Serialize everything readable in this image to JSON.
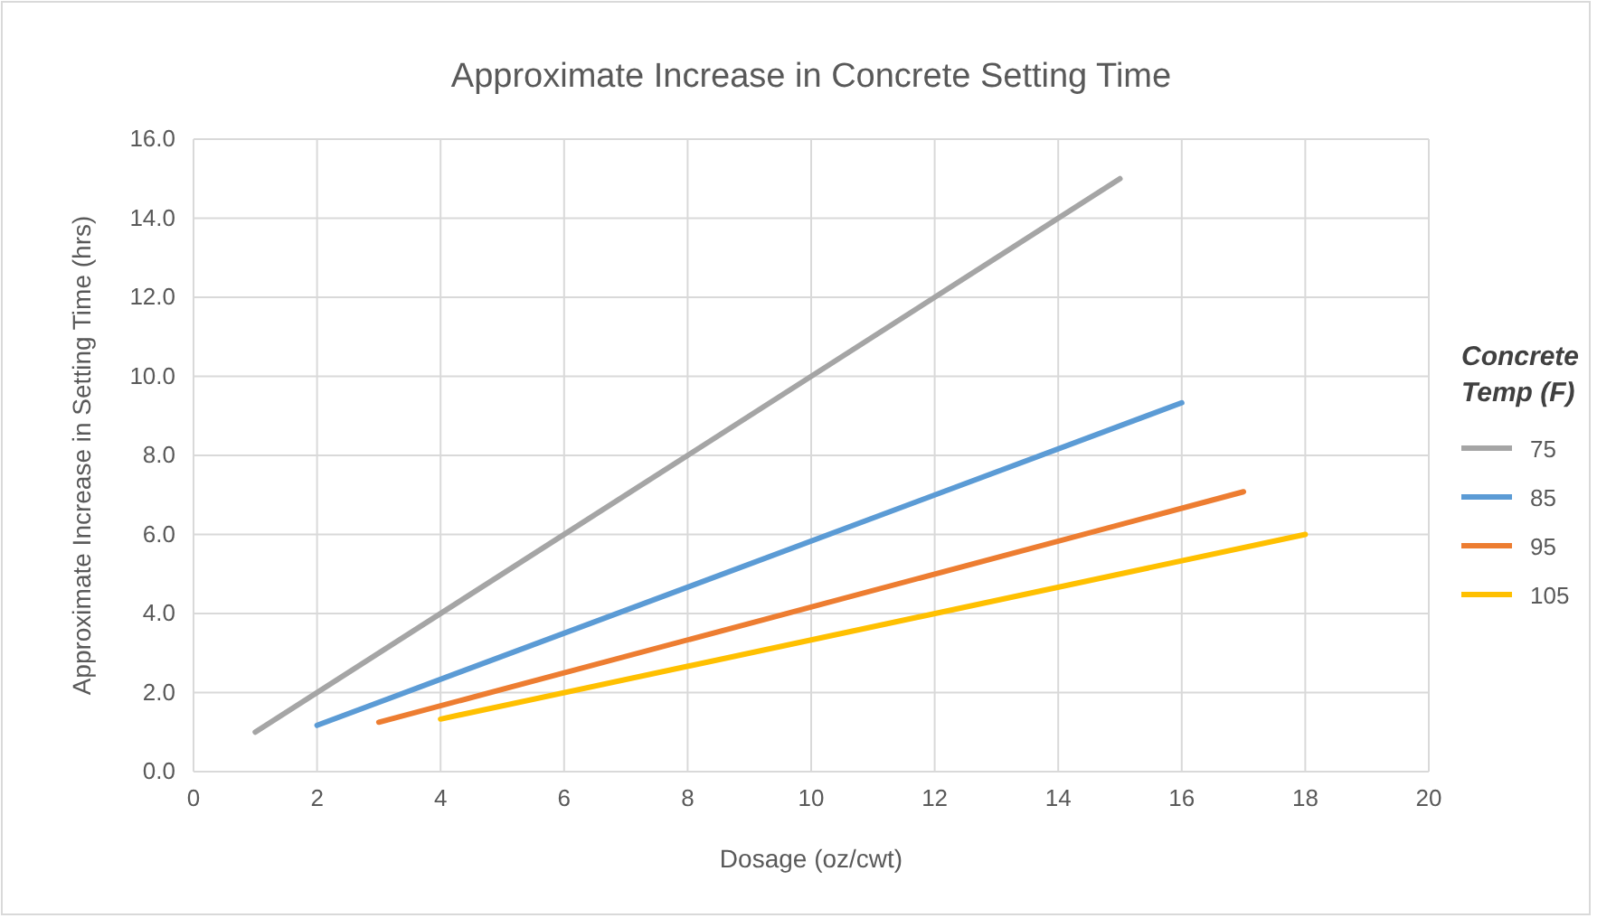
{
  "chart_data": {
    "type": "line",
    "title": "Approximate Increase in Concrete Setting Time",
    "xlabel": "Dosage (oz/cwt)",
    "ylabel": "Approximate Increase in Setting Time (hrs)",
    "legend_title": "Concrete Temp (F)",
    "xlim": [
      0,
      20
    ],
    "xticks": [
      0,
      2,
      4,
      6,
      8,
      10,
      12,
      14,
      16,
      18,
      20
    ],
    "ylim": [
      0,
      16
    ],
    "yticks": [
      {
        "value": 0,
        "label": "0.0"
      },
      {
        "value": 2,
        "label": "2.0"
      },
      {
        "value": 4,
        "label": "4.0"
      },
      {
        "value": 6,
        "label": "6.0"
      },
      {
        "value": 8,
        "label": "8.0"
      },
      {
        "value": 10,
        "label": "10.0"
      },
      {
        "value": 12,
        "label": "12.0"
      },
      {
        "value": 14,
        "label": "14.0"
      },
      {
        "value": 16,
        "label": "16.0"
      }
    ],
    "grid": true,
    "legend": "right",
    "marker": "none",
    "line_style": "solid",
    "series": [
      {
        "name": "75",
        "color": "#a5a5a5",
        "x": [
          1,
          15
        ],
        "values": [
          1,
          15
        ]
      },
      {
        "name": "85",
        "color": "#5b9bd5",
        "x": [
          2,
          16
        ],
        "values": [
          1.17,
          9.33
        ]
      },
      {
        "name": "95",
        "color": "#ed7d31",
        "x": [
          3,
          17
        ],
        "values": [
          1.25,
          7.08
        ]
      },
      {
        "name": "105",
        "color": "#ffc000",
        "x": [
          4,
          18
        ],
        "values": [
          1.33,
          6.0
        ]
      }
    ]
  }
}
